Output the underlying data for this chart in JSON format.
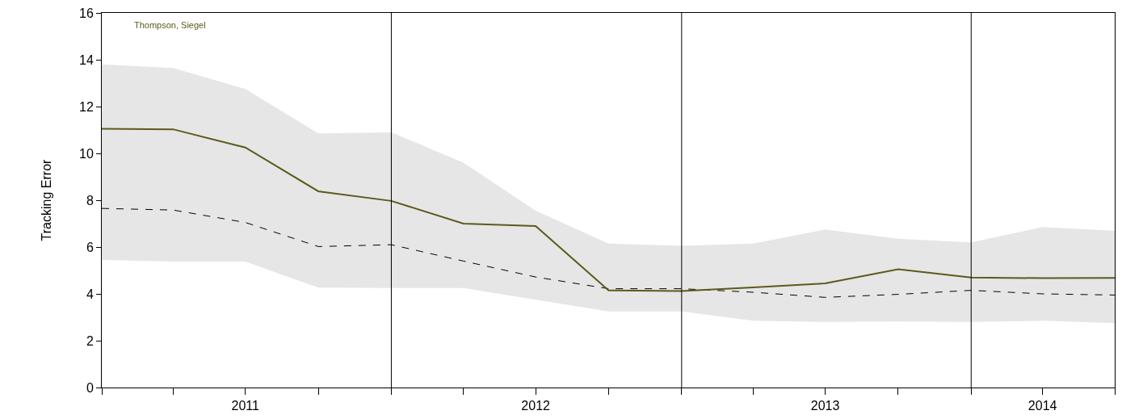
{
  "chart_data": {
    "type": "line",
    "ylabel": "Tracking Error",
    "x": [
      "2011-01-01",
      "2011-04-01",
      "2011-07-01",
      "2011-10-01",
      "2012-01-01",
      "2012-04-01",
      "2012-07-01",
      "2012-10-01",
      "2013-01-01",
      "2013-04-01",
      "2013-07-01",
      "2013-10-01",
      "2014-01-01",
      "2014-04-01",
      "2014-07-01"
    ],
    "series": [
      {
        "color": "#000000",
        "line_style": "dashed",
        "values": [
          7.65,
          7.58,
          7.05,
          6.02,
          6.1,
          5.4,
          4.72,
          4.22,
          4.22,
          4.07,
          3.85,
          3.98,
          4.15,
          4.0,
          3.95
        ],
        "lower": [
          5.45,
          5.38,
          5.38,
          4.27,
          4.25,
          4.25,
          3.75,
          3.25,
          3.25,
          2.85,
          2.8,
          2.82,
          2.8,
          2.85,
          2.75
        ],
        "upper": [
          13.8,
          13.65,
          12.75,
          10.85,
          10.9,
          9.6,
          7.55,
          6.15,
          6.05,
          6.15,
          6.75,
          6.35,
          6.2,
          6.85,
          6.7
        ]
      },
      {
        "name": "Thompson, Siegel",
        "color": "#5c5a1b",
        "line_style": "solid",
        "values": [
          11.05,
          11.03,
          10.25,
          8.38,
          7.97,
          7.0,
          6.9,
          4.15,
          4.12,
          4.28,
          4.45,
          5.05,
          4.7,
          4.67,
          4.68
        ]
      }
    ],
    "xlim": [
      "2011-01-01",
      "2014-07-01"
    ],
    "xticks": [
      {
        "value": "2011-01-01",
        "label": null
      },
      {
        "value": "2011-04-01",
        "label": null
      },
      {
        "value": "2011-07-01",
        "label": "2011"
      },
      {
        "value": "2011-10-01",
        "label": null
      },
      {
        "value": "2012-01-01",
        "label": null
      },
      {
        "value": "2012-04-01",
        "label": null
      },
      {
        "value": "2012-07-01",
        "label": "2012"
      },
      {
        "value": "2012-10-01",
        "label": null
      },
      {
        "value": "2013-01-01",
        "label": null
      },
      {
        "value": "2013-04-01",
        "label": null
      },
      {
        "value": "2013-07-01",
        "label": "2013"
      },
      {
        "value": "2013-10-01",
        "label": null
      },
      {
        "value": "2014-01-01",
        "label": null
      },
      {
        "value": "2014-04-01",
        "label": "2014"
      },
      {
        "value": "2014-07-01",
        "label": null
      }
    ],
    "ylim": [
      0,
      16
    ],
    "yticks": [
      0,
      2,
      4,
      6,
      8,
      10,
      12,
      14,
      16
    ],
    "ref_lines": [
      {
        "axis": "x",
        "value": "2012-01-01",
        "color": "#000000"
      },
      {
        "axis": "x",
        "value": "2013-01-01",
        "color": "#000000"
      },
      {
        "axis": "x",
        "value": "2014-01-01",
        "color": "#000000"
      }
    ],
    "legend": false,
    "grid": false,
    "marker": "none"
  }
}
